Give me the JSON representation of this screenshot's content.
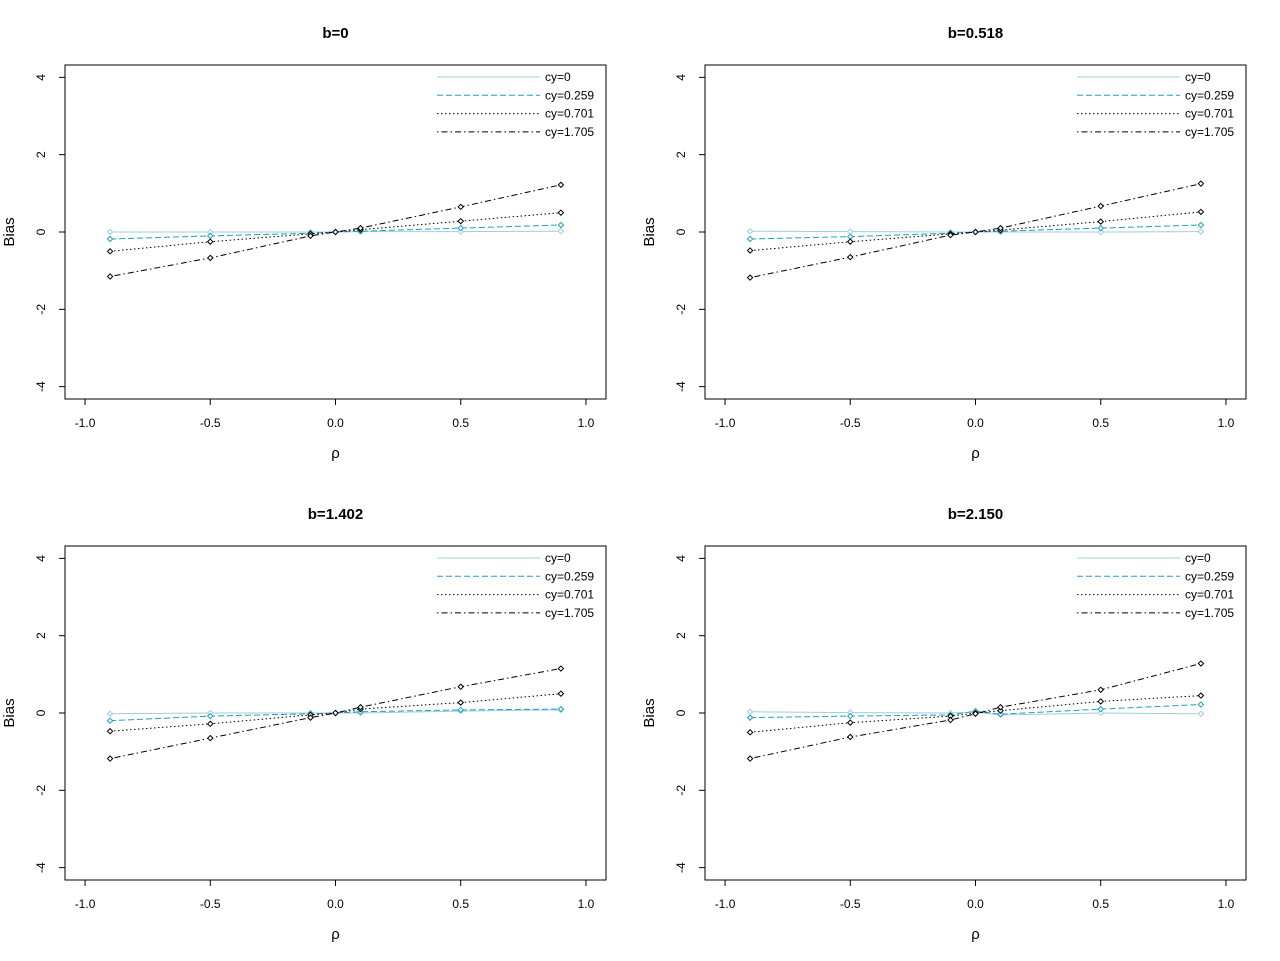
{
  "figure": {
    "background": "#ffffff"
  },
  "chart_data": [
    {
      "type": "line",
      "title": "b=0",
      "xlabel": "ρ",
      "ylabel": "Bias",
      "xlim": [
        -1.0,
        1.0
      ],
      "ylim": [
        -4,
        4
      ],
      "x_ticks": [
        "-1.0",
        "-0.5",
        "0.0",
        "0.5",
        "1.0"
      ],
      "y_ticks": [
        "-4",
        "-2",
        "0",
        "2",
        "4"
      ],
      "grid": false,
      "legend_position": "top-right",
      "x": [
        -0.9,
        -0.5,
        -0.1,
        0.0,
        0.1,
        0.5,
        0.9
      ],
      "series": [
        {
          "name": "cy=0",
          "color": "#9ecfd8",
          "dash": "solid",
          "values": [
            0.0,
            0.0,
            0.0,
            0.0,
            0.01,
            0.01,
            0.02
          ]
        },
        {
          "name": "cy=0.259",
          "color": "#1e9fc0",
          "dash": "dashed",
          "values": [
            -0.18,
            -0.1,
            -0.03,
            0.0,
            0.02,
            0.1,
            0.18
          ]
        },
        {
          "name": "cy=0.701",
          "color": "#000000",
          "dash": "dotted",
          "values": [
            -0.5,
            -0.25,
            -0.05,
            0.0,
            0.06,
            0.28,
            0.5
          ]
        },
        {
          "name": "cy=1.705",
          "color": "#000000",
          "dash": "dotdash",
          "values": [
            -1.15,
            -0.67,
            -0.1,
            0.0,
            0.1,
            0.65,
            1.22
          ]
        }
      ]
    },
    {
      "type": "line",
      "title": "b=0.518",
      "xlabel": "ρ",
      "ylabel": "Bias",
      "xlim": [
        -1.0,
        1.0
      ],
      "ylim": [
        -4,
        4
      ],
      "x_ticks": [
        "-1.0",
        "-0.5",
        "0.0",
        "0.5",
        "1.0"
      ],
      "y_ticks": [
        "-4",
        "-2",
        "0",
        "2",
        "4"
      ],
      "grid": false,
      "legend_position": "top-right",
      "x": [
        -0.9,
        -0.5,
        -0.1,
        0.0,
        0.1,
        0.5,
        0.9
      ],
      "series": [
        {
          "name": "cy=0",
          "color": "#9ecfd8",
          "dash": "solid",
          "values": [
            0.02,
            0.01,
            0.0,
            0.0,
            0.0,
            0.0,
            0.01
          ]
        },
        {
          "name": "cy=0.259",
          "color": "#1e9fc0",
          "dash": "dashed",
          "values": [
            -0.18,
            -0.12,
            -0.03,
            0.0,
            0.02,
            0.1,
            0.18
          ]
        },
        {
          "name": "cy=0.701",
          "color": "#000000",
          "dash": "dotted",
          "values": [
            -0.48,
            -0.25,
            -0.05,
            0.0,
            0.05,
            0.27,
            0.52
          ]
        },
        {
          "name": "cy=1.705",
          "color": "#000000",
          "dash": "dotdash",
          "values": [
            -1.18,
            -0.65,
            -0.08,
            0.0,
            0.1,
            0.67,
            1.25
          ]
        }
      ]
    },
    {
      "type": "line",
      "title": "b=1.402",
      "xlabel": "ρ",
      "ylabel": "Bias",
      "xlim": [
        -1.0,
        1.0
      ],
      "ylim": [
        -4,
        4
      ],
      "x_ticks": [
        "-1.0",
        "-0.5",
        "0.0",
        "0.5",
        "1.0"
      ],
      "y_ticks": [
        "-4",
        "-2",
        "0",
        "2",
        "4"
      ],
      "grid": false,
      "legend_position": "top-right",
      "x": [
        -0.9,
        -0.5,
        -0.1,
        0.0,
        0.1,
        0.5,
        0.9
      ],
      "series": [
        {
          "name": "cy=0",
          "color": "#9ecfd8",
          "dash": "solid",
          "values": [
            -0.02,
            0.0,
            0.0,
            0.0,
            0.0,
            0.05,
            0.08
          ]
        },
        {
          "name": "cy=0.259",
          "color": "#1e9fc0",
          "dash": "dashed",
          "values": [
            -0.2,
            -0.08,
            -0.02,
            0.0,
            0.03,
            0.08,
            0.1
          ]
        },
        {
          "name": "cy=0.701",
          "color": "#000000",
          "dash": "dotted",
          "values": [
            -0.47,
            -0.28,
            -0.05,
            0.0,
            0.1,
            0.27,
            0.5
          ]
        },
        {
          "name": "cy=1.705",
          "color": "#000000",
          "dash": "dotdash",
          "values": [
            -1.18,
            -0.65,
            -0.12,
            0.0,
            0.15,
            0.68,
            1.15
          ]
        }
      ]
    },
    {
      "type": "line",
      "title": "b=2.150",
      "xlabel": "ρ",
      "ylabel": "Bias",
      "xlim": [
        -1.0,
        1.0
      ],
      "ylim": [
        -4,
        4
      ],
      "x_ticks": [
        "-1.0",
        "-0.5",
        "0.0",
        "0.5",
        "1.0"
      ],
      "y_ticks": [
        "-4",
        "-2",
        "0",
        "2",
        "4"
      ],
      "grid": false,
      "legend_position": "top-right",
      "x": [
        -0.9,
        -0.5,
        -0.1,
        0.0,
        0.1,
        0.5,
        0.9
      ],
      "series": [
        {
          "name": "cy=0",
          "color": "#9ecfd8",
          "dash": "solid",
          "values": [
            0.03,
            0.01,
            0.0,
            0.02,
            -0.05,
            0.0,
            -0.02
          ]
        },
        {
          "name": "cy=0.259",
          "color": "#1e9fc0",
          "dash": "dashed",
          "values": [
            -0.12,
            -0.08,
            -0.05,
            0.05,
            -0.03,
            0.1,
            0.22
          ]
        },
        {
          "name": "cy=0.701",
          "color": "#000000",
          "dash": "dotted",
          "values": [
            -0.5,
            -0.25,
            -0.08,
            0.0,
            0.06,
            0.3,
            0.45
          ]
        },
        {
          "name": "cy=1.705",
          "color": "#000000",
          "dash": "dotdash",
          "values": [
            -1.18,
            -0.62,
            -0.18,
            -0.02,
            0.15,
            0.6,
            1.28
          ]
        }
      ]
    }
  ]
}
